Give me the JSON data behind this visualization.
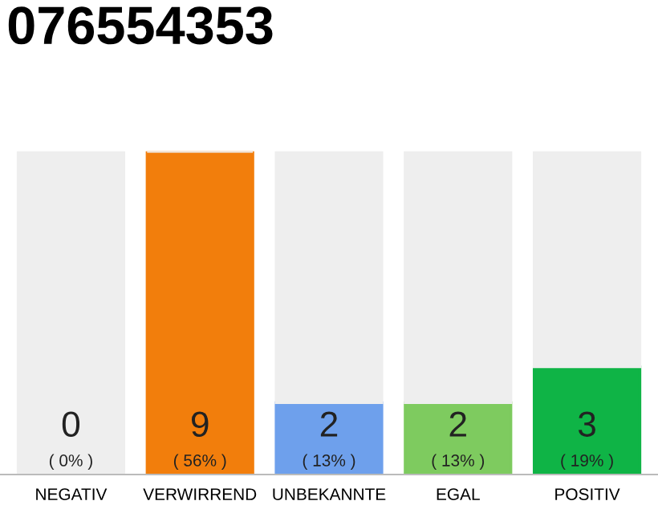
{
  "chart_data": {
    "type": "bar",
    "title": "076554353",
    "categories": [
      "NEGATIV",
      "VERWIRREND",
      "UNBEKANNTE",
      "EGAL",
      "POSITIV"
    ],
    "stacked": true,
    "ylim": [
      0,
      9
    ],
    "grid": false,
    "legend": false,
    "series": [
      {
        "colors": [
          "#333333",
          "#f27e0c",
          "#6ea0ec",
          "#7ecb5f",
          "#0fb446"
        ],
        "values": [
          0,
          9,
          2,
          2,
          3
        ],
        "value_labels": [
          "0\n( 0% )",
          "9\n( 56% )",
          "2\n( 13% )",
          "2\n( 13% )",
          "3\n( 19% )"
        ]
      },
      {
        "color": "#eeeeee",
        "values": [
          9,
          0,
          7,
          7,
          6
        ]
      }
    ]
  }
}
